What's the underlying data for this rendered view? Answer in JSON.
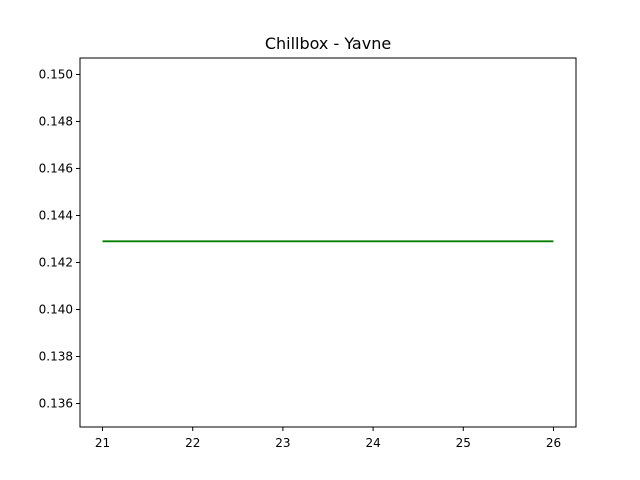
{
  "chart_data": {
    "type": "line",
    "title": "Chillbox - Yavne",
    "xlabel": "",
    "ylabel": "",
    "xlim": [
      20.75,
      26.25
    ],
    "ylim": [
      0.135,
      0.1507
    ],
    "x_ticks": [
      21,
      22,
      23,
      24,
      25,
      26
    ],
    "x_tick_labels": [
      "21",
      "22",
      "23",
      "24",
      "25",
      "26"
    ],
    "y_ticks": [
      0.136,
      0.138,
      0.14,
      0.142,
      0.144,
      0.146,
      0.148,
      0.15
    ],
    "y_tick_labels": [
      "0.136",
      "0.138",
      "0.140",
      "0.142",
      "0.144",
      "0.146",
      "0.148",
      "0.150"
    ],
    "grid": false,
    "series": [
      {
        "color": "#008000",
        "x": [
          21,
          22,
          23,
          24,
          25,
          26
        ],
        "y": [
          0.1429,
          0.1429,
          0.1429,
          0.1429,
          0.1429,
          0.1429
        ]
      }
    ]
  }
}
